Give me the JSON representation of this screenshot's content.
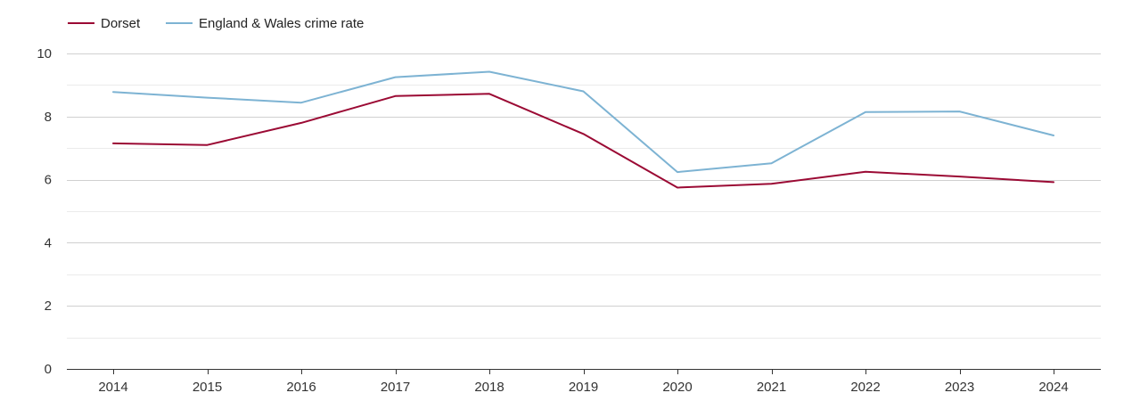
{
  "chart_data": {
    "type": "line",
    "x": [
      "2014",
      "2015",
      "2016",
      "2017",
      "2018",
      "2019",
      "2020",
      "2021",
      "2022",
      "2023",
      "2024"
    ],
    "series": [
      {
        "name": "Dorset",
        "color": "#9b0a34",
        "values": [
          7.15,
          7.1,
          7.8,
          8.65,
          8.72,
          7.45,
          5.75,
          5.87,
          6.25,
          6.1,
          5.92
        ]
      },
      {
        "name": "England & Wales crime rate",
        "color": "#7db3d3",
        "values": [
          8.78,
          8.6,
          8.44,
          9.25,
          9.42,
          8.8,
          6.24,
          6.52,
          8.14,
          8.16,
          7.4
        ]
      }
    ],
    "y_ticks": [
      "0",
      "2",
      "4",
      "6",
      "8",
      "10"
    ],
    "ylim": [
      0,
      10
    ],
    "title": "",
    "xlabel": "",
    "ylabel": "",
    "grid": true,
    "legend_position": "top-left"
  }
}
